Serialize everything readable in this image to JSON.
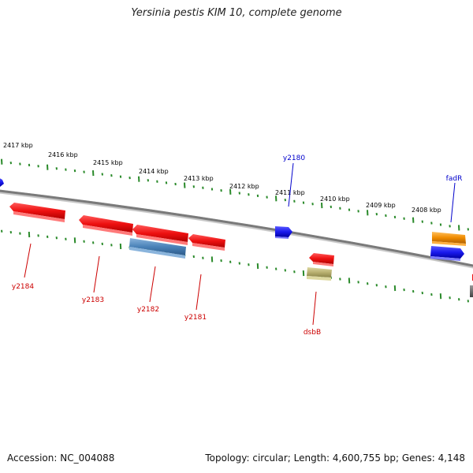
{
  "title": "Yersinia pestis KIM 10, complete genome",
  "footer": {
    "accession": "Accession: NC_004088",
    "summary": "Topology: circular; Length: 4,600,755 bp; Genes: 4,148"
  },
  "colors": {
    "backbone": "#7a7a7a",
    "tick": "#2a8a2a",
    "forward_label": "#0000cc",
    "reverse_label": "#cc0000",
    "red_gene": "#ee1111",
    "blue_gene": "#1a1aee",
    "steel_gene": "#4a82b8",
    "orange_gene": "#f08c00",
    "khaki_gene": "#b8b070",
    "gray_gene": "#666666"
  },
  "ruler_labels": [
    "2417 kbp",
    "2416 kbp",
    "2415 kbp",
    "2414 kbp",
    "2413 kbp",
    "2412 kbp",
    "2411 kbp",
    "2410 kbp",
    "2409 kbp",
    "2408 kbp"
  ],
  "forward_labels": [
    "y2180",
    "fadR"
  ],
  "reverse_labels": [
    "y2184",
    "y2183",
    "y2182",
    "y2181",
    "dsbB"
  ]
}
